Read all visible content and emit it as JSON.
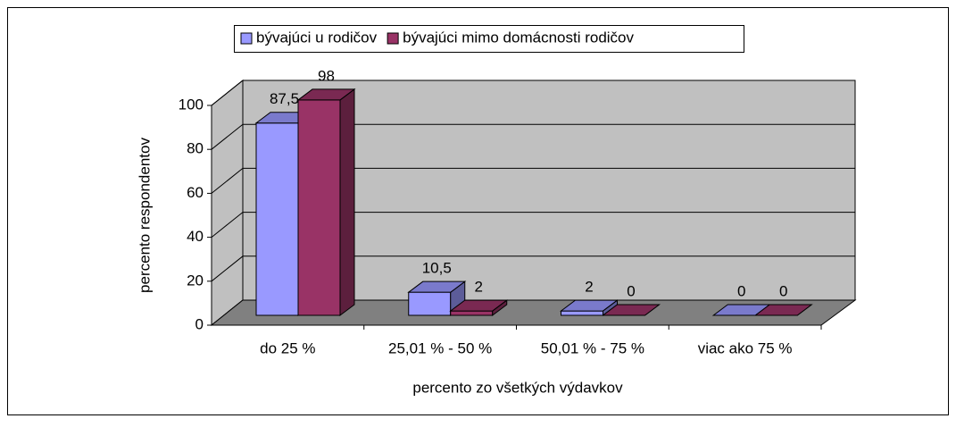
{
  "chart_data": {
    "type": "bar3d",
    "categories": [
      "do 25 %",
      "25,01 % - 50 %",
      "50,01 % - 75 %",
      "viac ako 75 %"
    ],
    "series": [
      {
        "name": "bývajúci u rodičov",
        "color": "#9999ff",
        "values": [
          87.5,
          10.5,
          2,
          0
        ],
        "value_labels": [
          "87,5",
          "10,5",
          "2",
          "0"
        ]
      },
      {
        "name": "bývajúci mimo domácnosti rodičov",
        "color": "#993366",
        "values": [
          98,
          2,
          0,
          0
        ]
      }
    ],
    "x_label": "percento zo všetkých výdavkov",
    "y_label": "percento respondentov",
    "ylim": [
      0,
      100
    ],
    "yticks": [
      0,
      20,
      40,
      60,
      80,
      100
    ],
    "grid": true
  }
}
